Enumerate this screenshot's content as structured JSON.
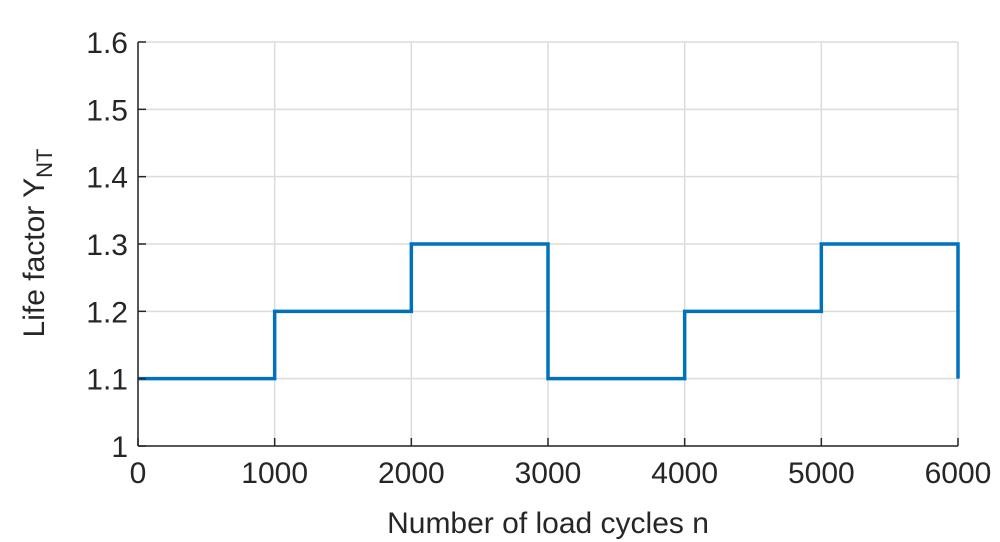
{
  "chart_data": {
    "type": "line",
    "title": "",
    "xlabel": "Number of load cycles n",
    "ylabel": "Life factor Y",
    "ylabel_subscript": "NT",
    "xlim": [
      0,
      6000
    ],
    "ylim": [
      1,
      1.6
    ],
    "xticks": [
      "0",
      "1000",
      "2000",
      "3000",
      "4000",
      "5000",
      "6000"
    ],
    "yticks": [
      "1",
      "1.1",
      "1.2",
      "1.3",
      "1.4",
      "1.5",
      "1.6"
    ],
    "grid": true,
    "series": [
      {
        "step": "post",
        "color": "#0072BD",
        "x": [
          0,
          1000,
          2000,
          3000,
          4000,
          5000,
          6000
        ],
        "y": [
          1.1,
          1.2,
          1.3,
          1.1,
          1.2,
          1.3,
          1.1
        ]
      }
    ]
  }
}
